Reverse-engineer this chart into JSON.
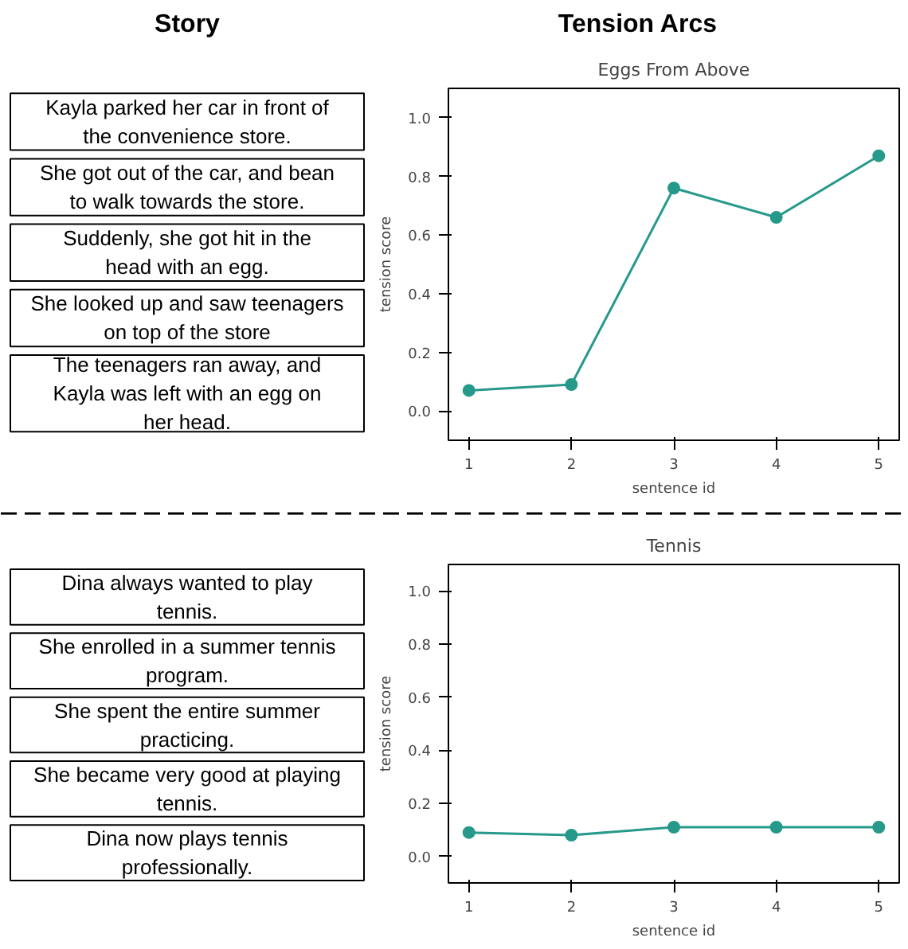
{
  "chart_data": [
    {
      "type": "other",
      "title": "Story",
      "annotations": [
        "Kayla parked her car in front of the convenience store.",
        "She got out of the car, and bean to walk towards the store.",
        "Suddenly, she got hit in the head with an egg.",
        "She looked up and saw teenagers on top of the store",
        "The teenagers ran away, and Kayla was left with an egg on her head."
      ]
    },
    {
      "type": "line",
      "title": "Tension Arcs",
      "subtitle": "Eggs From Above",
      "xlabel": "sentence id",
      "ylabel": "tension score",
      "x": [
        1,
        2,
        3,
        4,
        5
      ],
      "series": [
        {
          "color": "#26998a",
          "values": [
            0.07,
            0.09,
            0.76,
            0.66,
            0.87
          ]
        }
      ],
      "xlim": [
        0.8,
        5.2
      ],
      "ylim": [
        -0.1,
        1.1
      ],
      "xticks": [
        1,
        2,
        3,
        4,
        5
      ],
      "yticks": [
        {
          "value": 0,
          "label": "0.0"
        },
        {
          "value": 0.2,
          "label": "0.2"
        },
        {
          "value": 0.4,
          "label": "0.4"
        },
        {
          "value": 0.6,
          "label": "0.6"
        },
        {
          "value": 0.8,
          "label": "0.8"
        },
        {
          "value": 1,
          "label": "1.0"
        }
      ],
      "marker": "circle",
      "grid": false
    },
    {
      "type": "other",
      "annotations": [
        "Dina always wanted to play tennis.",
        "She enrolled in a summer tennis program.",
        "She spent the entire summer practicing.",
        "She became very good at playing tennis.",
        "Dina now plays tennis professionally."
      ]
    },
    {
      "type": "line",
      "subtitle": "Tennis",
      "xlabel": "sentence id",
      "ylabel": "tension score",
      "x": [
        1,
        2,
        3,
        4,
        5
      ],
      "series": [
        {
          "color": "#26998a",
          "values": [
            0.09,
            0.08,
            0.11,
            0.11,
            0.11
          ]
        }
      ],
      "xlim": [
        0.8,
        5.2
      ],
      "ylim": [
        -0.1,
        1.1
      ],
      "xticks": [
        1,
        2,
        3,
        4,
        5
      ],
      "yticks": [
        {
          "value": 0,
          "label": "0.0"
        },
        {
          "value": 0.2,
          "label": "0.2"
        },
        {
          "value": 0.4,
          "label": "0.4"
        },
        {
          "value": 0.6,
          "label": "0.6"
        },
        {
          "value": 0.8,
          "label": "0.8"
        },
        {
          "value": 1,
          "label": "1.0"
        }
      ],
      "marker": "circle",
      "grid": false
    }
  ]
}
